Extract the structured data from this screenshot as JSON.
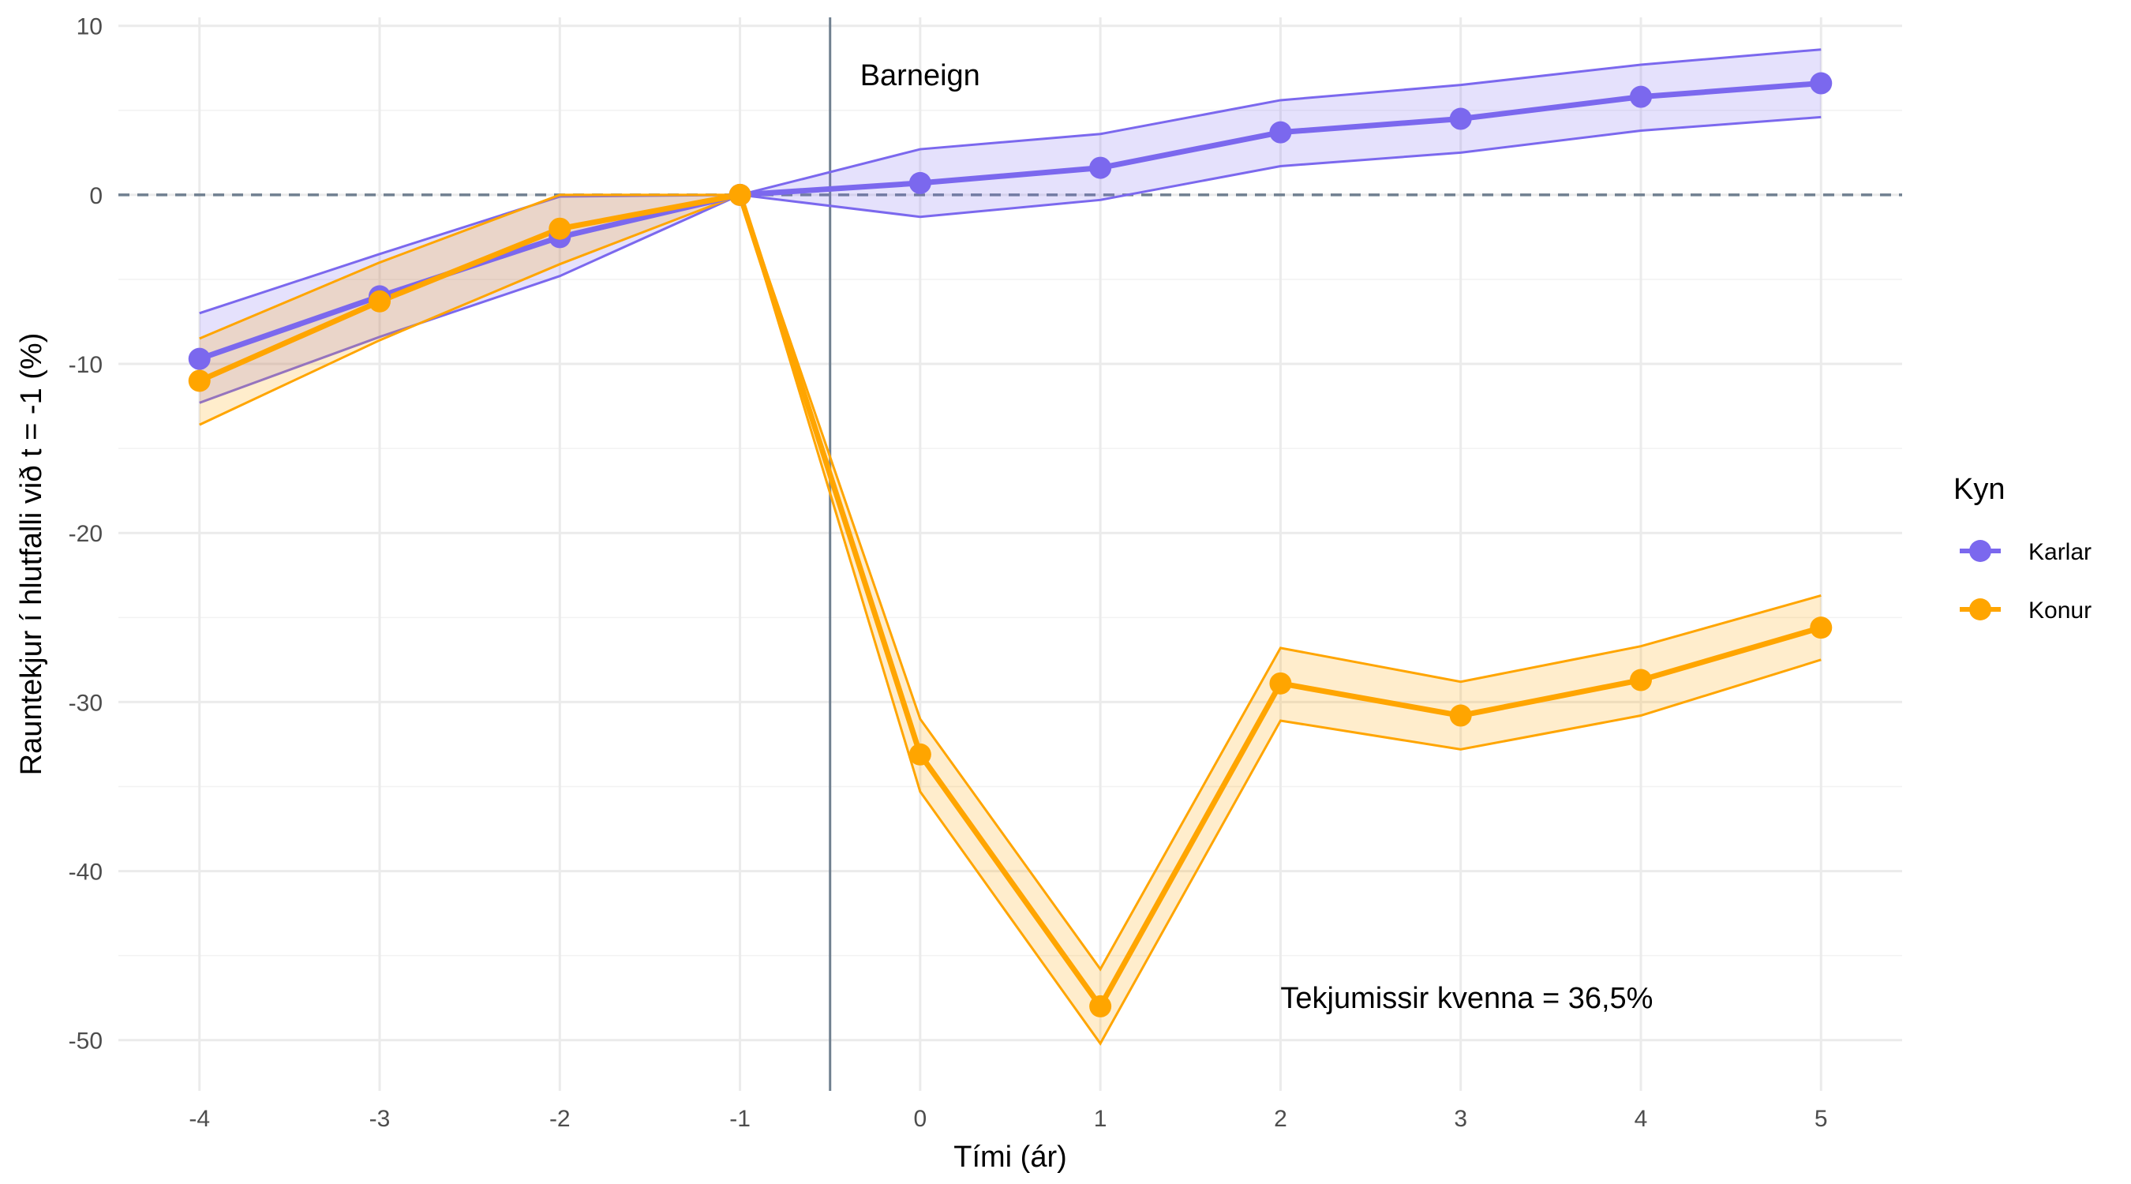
{
  "chart_data": {
    "type": "line",
    "title": "",
    "xlabel": "Tími (ár)",
    "ylabel": "Rauntekjur í hlutfalli við t = -1 (%)",
    "x": [
      -4,
      -3,
      -2,
      -1,
      0,
      1,
      2,
      3,
      4,
      5
    ],
    "xlim": [
      -4.45,
      5.45
    ],
    "ylim": [
      -53,
      10.5
    ],
    "x_ticks": [
      -4,
      -3,
      -2,
      -1,
      0,
      1,
      2,
      3,
      4,
      5
    ],
    "y_ticks": [
      10,
      0,
      -10,
      -20,
      -30,
      -40,
      -50
    ],
    "grid": true,
    "reference_hline": {
      "y": 0,
      "style": "dashed",
      "color": "#708090"
    },
    "event_vline": {
      "x": -0.5,
      "label": "Barneign",
      "color": "#708090"
    },
    "annotation": {
      "text": "Tekjumissir kvenna = 36,5%",
      "x": 2,
      "y": -47.5
    },
    "legend": {
      "title": "Kyn",
      "position": "right"
    },
    "series": [
      {
        "name": "Karlar",
        "color": "#7B68EE",
        "values": [
          -9.7,
          -6.0,
          -2.5,
          0,
          0.7,
          1.6,
          3.7,
          4.5,
          5.8,
          6.6
        ],
        "lower": [
          -12.3,
          -8.4,
          -4.8,
          0,
          -1.3,
          -0.3,
          1.7,
          2.5,
          3.8,
          4.6
        ],
        "upper": [
          -7.0,
          -3.5,
          -0.1,
          0,
          2.7,
          3.6,
          5.6,
          6.5,
          7.7,
          8.6
        ]
      },
      {
        "name": "Konur",
        "color": "#FFA500",
        "values": [
          -11.0,
          -6.3,
          -2.0,
          0,
          -33.1,
          -48.0,
          -28.9,
          -30.8,
          -28.7,
          -25.6
        ],
        "lower": [
          -13.6,
          -8.6,
          -4.1,
          0,
          -35.3,
          -50.2,
          -31.1,
          -32.8,
          -30.8,
          -27.5
        ],
        "upper": [
          -8.5,
          -4.0,
          0.0,
          0,
          -31.0,
          -45.8,
          -26.8,
          -28.8,
          -26.7,
          -23.7
        ]
      }
    ]
  }
}
